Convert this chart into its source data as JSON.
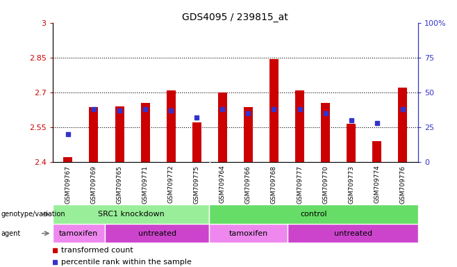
{
  "title": "GDS4095 / 239815_at",
  "samples": [
    "GSM709767",
    "GSM709769",
    "GSM709765",
    "GSM709771",
    "GSM709772",
    "GSM709775",
    "GSM709764",
    "GSM709766",
    "GSM709768",
    "GSM709777",
    "GSM709770",
    "GSM709773",
    "GSM709774",
    "GSM709776"
  ],
  "bar_values": [
    2.42,
    2.635,
    2.64,
    2.655,
    2.71,
    2.57,
    2.7,
    2.635,
    2.845,
    2.71,
    2.655,
    2.565,
    2.49,
    2.72
  ],
  "percentile_values": [
    20,
    38,
    37,
    38,
    37,
    32,
    38,
    35,
    38,
    38,
    35,
    30,
    28,
    38
  ],
  "ymin": 2.4,
  "ymax": 3.0,
  "yticks": [
    2.4,
    2.55,
    2.7,
    2.85,
    3.0
  ],
  "ytick_labels": [
    "2.4",
    "2.55",
    "2.7",
    "2.85",
    "3"
  ],
  "right_yticks": [
    0,
    25,
    50,
    75,
    100
  ],
  "right_ytick_labels": [
    "0",
    "25",
    "50",
    "75",
    "100%"
  ],
  "hlines": [
    2.55,
    2.7,
    2.85
  ],
  "bar_color": "#cc0000",
  "dot_color": "#3333cc",
  "bar_bottom": 2.4,
  "genotype_groups": [
    {
      "label": "SRC1 knockdown",
      "start": 0,
      "end": 6,
      "color": "#99ee99"
    },
    {
      "label": "control",
      "start": 6,
      "end": 14,
      "color": "#66dd66"
    }
  ],
  "agent_groups": [
    {
      "label": "tamoxifen",
      "start": 0,
      "end": 2,
      "color": "#ee88ee"
    },
    {
      "label": "untreated",
      "start": 2,
      "end": 6,
      "color": "#cc44cc"
    },
    {
      "label": "tamoxifen",
      "start": 6,
      "end": 9,
      "color": "#ee88ee"
    },
    {
      "label": "untreated",
      "start": 9,
      "end": 14,
      "color": "#cc44cc"
    }
  ],
  "left_label": "genotype/variation",
  "agent_label": "agent",
  "legend_red": "transformed count",
  "legend_blue": "percentile rank within the sample",
  "tick_color_left": "#cc0000",
  "tick_color_right": "#3333cc",
  "xticklabel_bg": "#d8d8d8",
  "plot_bg": "white"
}
